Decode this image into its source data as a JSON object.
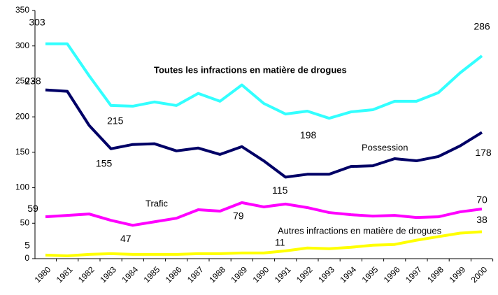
{
  "chart_data": {
    "type": "line",
    "categories": [
      "1980",
      "1981",
      "1982",
      "1983",
      "1984",
      "1985",
      "1986",
      "1987",
      "1988",
      "1989",
      "1990",
      "1991",
      "1992",
      "1993",
      "1994",
      "1995",
      "1996",
      "1997",
      "1998",
      "1999",
      "2000"
    ],
    "series": [
      {
        "name": "Toutes les infractions en matière de drogues",
        "color": "#33ffff",
        "values": [
          303,
          303,
          258,
          216,
          215,
          221,
          216,
          233,
          222,
          245,
          219,
          204,
          208,
          198,
          207,
          210,
          222,
          222,
          234,
          262,
          286
        ]
      },
      {
        "name": "Possession",
        "color": "#000066",
        "values": [
          238,
          236,
          188,
          155,
          161,
          162,
          152,
          156,
          147,
          158,
          138,
          115,
          119,
          119,
          130,
          131,
          141,
          138,
          144,
          159,
          178
        ]
      },
      {
        "name": "Trafic",
        "color": "#ff00ff",
        "values": [
          59,
          61,
          63,
          54,
          47,
          52,
          57,
          69,
          67,
          79,
          73,
          77,
          72,
          65,
          62,
          60,
          61,
          58,
          59,
          66,
          70
        ]
      },
      {
        "name": "Autres infractions en matière de drogues",
        "color": "#ffff00",
        "values": [
          5,
          4,
          6,
          7,
          6,
          6,
          6,
          7,
          7,
          8,
          8,
          11,
          15,
          14,
          16,
          19,
          20,
          26,
          31,
          36,
          38
        ]
      }
    ],
    "ylim": [
      0,
      350
    ],
    "yticks": [
      0,
      50,
      100,
      150,
      200,
      250,
      300,
      350
    ],
    "grid": false
  }
}
